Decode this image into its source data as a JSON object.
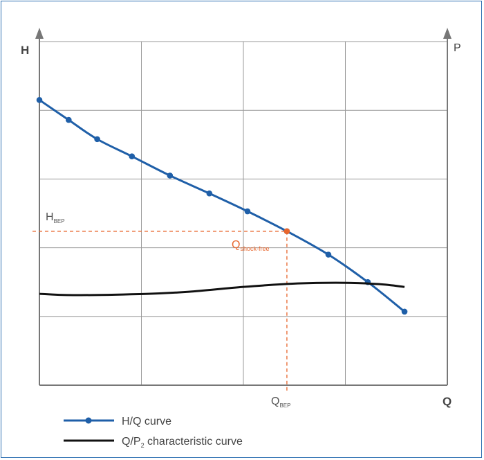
{
  "chart_data": {
    "type": "line",
    "y_axis_left_label": "H",
    "y_axis_right_label": "P",
    "x_axis_label": "Q",
    "grid": true,
    "series": [
      {
        "name": "H/Q curve",
        "color": "#1f5fa8",
        "markers": true,
        "x": [
          0,
          0.43,
          0.85,
          1.36,
          1.92,
          2.5,
          3.06,
          3.64,
          4.25,
          4.83,
          5.37
        ],
        "y": [
          4.15,
          3.86,
          3.58,
          3.33,
          3.05,
          2.79,
          2.53,
          2.24,
          1.9,
          1.5,
          1.07
        ]
      },
      {
        "name": "Q/P",
        "name_subscript": "2",
        "name_suffix": " characteristic curve",
        "color": "#111111",
        "markers": false,
        "x": [
          0,
          0.5,
          1.6,
          2.2,
          3.0,
          3.8,
          4.5,
          5.0,
          5.37
        ],
        "y": [
          1.33,
          1.31,
          1.33,
          1.36,
          1.43,
          1.48,
          1.49,
          1.47,
          1.43
        ]
      }
    ],
    "annotations": {
      "h_bep": {
        "main": "H",
        "sub": "BEP",
        "y": 2.24
      },
      "q_bep": {
        "main": "Q",
        "sub": "BEP",
        "x": 3.64
      },
      "q_shock_free": {
        "main": "Q",
        "sub": "shock-free",
        "color": "#e8662d"
      }
    },
    "xlim": [
      0,
      6
    ],
    "ylim": [
      0,
      5
    ]
  },
  "legend": {
    "items": [
      {
        "label": "H/Q curve"
      },
      {
        "label_main": "Q/P",
        "label_sub": "2",
        "label_tail": " characteristic curve"
      }
    ]
  }
}
